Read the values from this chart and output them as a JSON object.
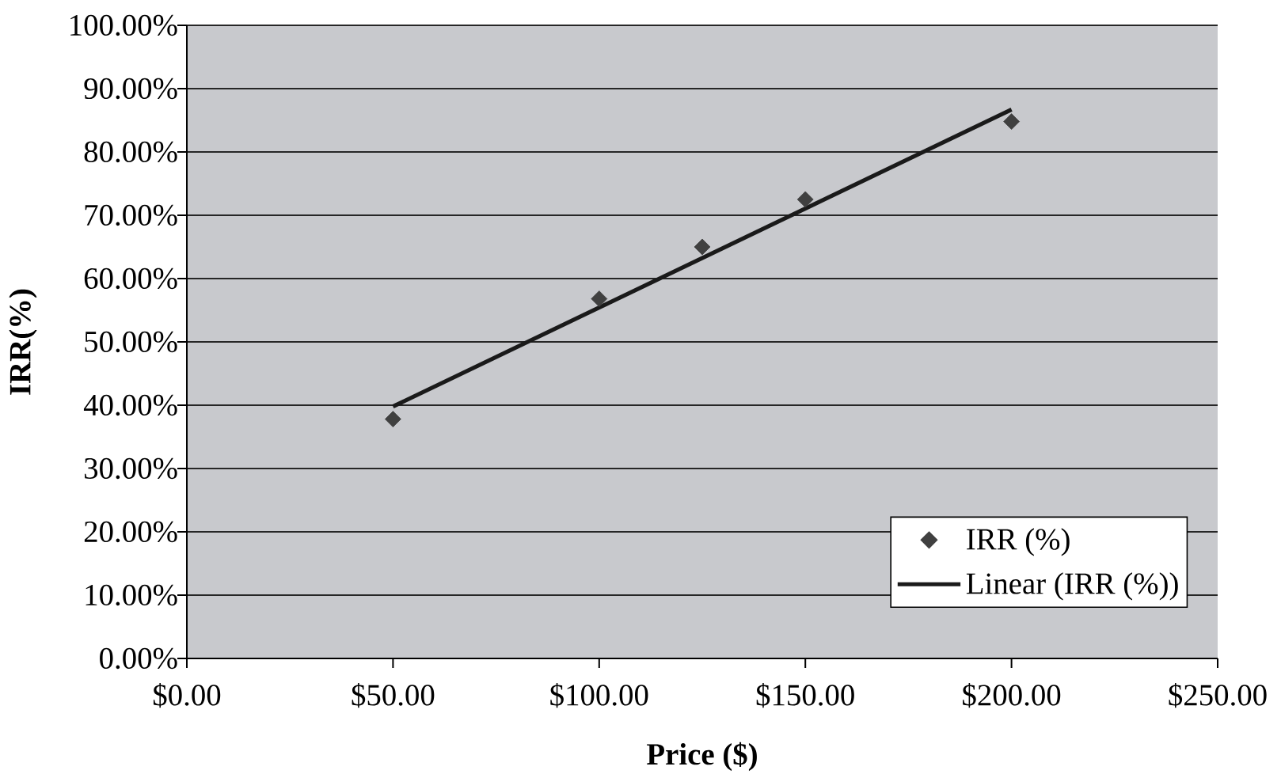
{
  "chart_data": {
    "type": "scatter",
    "xlabel": "Price ($)",
    "ylabel": "IRR(%)",
    "xlim": [
      0,
      250
    ],
    "xticks": [
      {
        "value": 0,
        "label": "$0.00"
      },
      {
        "value": 50,
        "label": "$50.00"
      },
      {
        "value": 100,
        "label": "$100.00"
      },
      {
        "value": 150,
        "label": "$150.00"
      },
      {
        "value": 200,
        "label": "$200.00"
      },
      {
        "value": 250,
        "label": "$250.00"
      }
    ],
    "ylim": [
      0,
      100
    ],
    "yticks": [
      {
        "value": 0,
        "label": "0.00%"
      },
      {
        "value": 10,
        "label": "10.00%"
      },
      {
        "value": 20,
        "label": "20.00%"
      },
      {
        "value": 30,
        "label": "30.00%"
      },
      {
        "value": 40,
        "label": "40.00%"
      },
      {
        "value": 50,
        "label": "50.00%"
      },
      {
        "value": 60,
        "label": "60.00%"
      },
      {
        "value": 70,
        "label": "70.00%"
      },
      {
        "value": 80,
        "label": "80.00%"
      },
      {
        "value": 90,
        "label": "90.00%"
      },
      {
        "value": 100,
        "label": "100.00%"
      }
    ],
    "grid": "y",
    "legend": "bottom right",
    "series": [
      {
        "name": "IRR (%)",
        "color": "#404040",
        "marker": "diamond",
        "x": [
          50,
          100,
          125,
          150,
          200
        ],
        "values": [
          37.8,
          56.8,
          65.0,
          72.5,
          84.8
        ]
      },
      {
        "name": "Linear (IRR (%))",
        "type": "line",
        "color": "#1a1a1a",
        "marker": "none",
        "line_style": "solid",
        "x": [
          50,
          200
        ],
        "values": [
          39.8,
          86.7
        ]
      }
    ]
  }
}
